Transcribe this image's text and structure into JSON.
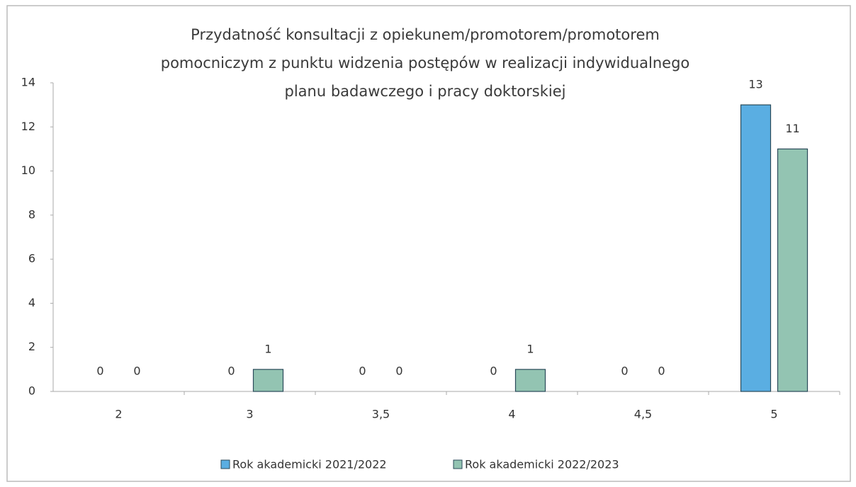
{
  "chart_data": {
    "type": "bar",
    "title": [
      "Przydatność konsultacji z opiekunem/promotorem/promotorem",
      "pomocniczym z punktu widzenia postępów w realizacji indywidualnego",
      "planu badawczego i pracy doktorskiej"
    ],
    "categories": [
      "2",
      "3",
      "3,5",
      "4",
      "4,5",
      "5"
    ],
    "series": [
      {
        "name": "Rok akademicki 2021/2022",
        "color": "#5aaee2",
        "values": [
          0,
          0,
          0,
          0,
          0,
          13
        ]
      },
      {
        "name": "Rok akademicki 2022/2023",
        "color": "#93c4b2",
        "values": [
          0,
          1,
          0,
          1,
          0,
          11
        ]
      }
    ],
    "ylim": [
      0,
      14
    ],
    "yticks": [
      0,
      2,
      4,
      6,
      8,
      10,
      12,
      14
    ],
    "grid": false,
    "legend": "bottom"
  }
}
